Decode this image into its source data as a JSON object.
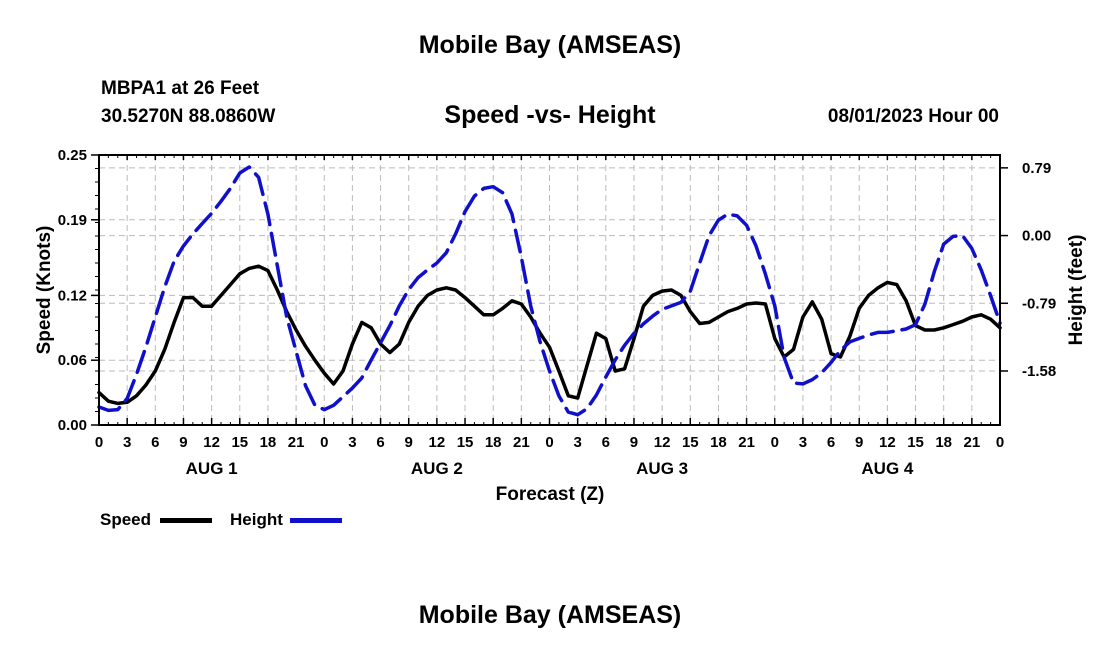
{
  "page": {
    "title_top": "Mobile Bay (AMSEAS)",
    "title_bottom": "Mobile Bay (AMSEAS)",
    "station": "MBPA1 at 26 Feet",
    "coords": "30.5270N  88.0860W",
    "date": "08/01/2023 Hour 00"
  },
  "legend": {
    "speed_label": "Speed",
    "height_label": "Height"
  },
  "chart_data": {
    "type": "line",
    "title": "Speed -vs- Height",
    "xlabel": "Forecast (Z)",
    "ylabel_left": "Speed (Knots)",
    "ylabel_right": "Height (feet)",
    "x_tick_labels": [
      "0",
      "3",
      "6",
      "9",
      "12",
      "15",
      "18",
      "21",
      "0",
      "3",
      "6",
      "9",
      "12",
      "15",
      "18",
      "21",
      "0",
      "3",
      "6",
      "9",
      "12",
      "15",
      "18",
      "21",
      "0",
      "3",
      "6",
      "9",
      "12",
      "15",
      "18",
      "21",
      "0"
    ],
    "day_labels": [
      "AUG 1",
      "AUG 2",
      "AUG 3",
      "AUG 4"
    ],
    "y_left_ticks": [
      "0.00",
      "0.06",
      "0.12",
      "0.19",
      "0.25"
    ],
    "y_left_range": [
      0,
      0.25
    ],
    "y_right_ticks": [
      "0.79",
      "0.00",
      "-0.79",
      "-1.58"
    ],
    "y_right_range": [
      -2.21,
      0.94
    ],
    "x_range_hours": [
      0,
      96
    ],
    "grid": true,
    "colors": {
      "speed": "#000000",
      "height": "#1010cc",
      "grid": "#bbbbbb"
    },
    "series": [
      {
        "name": "Speed",
        "axis": "left",
        "x": [
          0,
          1,
          2,
          3,
          4,
          5,
          6,
          7,
          8,
          9,
          10,
          11,
          12,
          13,
          14,
          15,
          16,
          17,
          18,
          19,
          20,
          21,
          22,
          23,
          24,
          25,
          26,
          27,
          28,
          29,
          30,
          31,
          32,
          33,
          34,
          35,
          36,
          37,
          38,
          39,
          40,
          41,
          42,
          43,
          44,
          45,
          46,
          47,
          48,
          49,
          50,
          51,
          52,
          53,
          54,
          55,
          56,
          57,
          58,
          59,
          60,
          61,
          62,
          63,
          64,
          65,
          66,
          67,
          68,
          69,
          70,
          71,
          72,
          73,
          74,
          75,
          76,
          77,
          78,
          79,
          80,
          81,
          82,
          83,
          84,
          85,
          86,
          87,
          88,
          89,
          90,
          91,
          92,
          93,
          94,
          95,
          96
        ],
        "values": [
          0.03,
          0.022,
          0.02,
          0.021,
          0.027,
          0.037,
          0.05,
          0.07,
          0.095,
          0.118,
          0.118,
          0.11,
          0.11,
          0.12,
          0.13,
          0.14,
          0.145,
          0.147,
          0.143,
          0.125,
          0.105,
          0.088,
          0.073,
          0.06,
          0.048,
          0.038,
          0.05,
          0.075,
          0.095,
          0.09,
          0.075,
          0.067,
          0.075,
          0.095,
          0.11,
          0.12,
          0.125,
          0.127,
          0.125,
          0.118,
          0.11,
          0.102,
          0.102,
          0.108,
          0.115,
          0.112,
          0.1,
          0.085,
          0.072,
          0.05,
          0.027,
          0.025,
          0.055,
          0.085,
          0.08,
          0.05,
          0.052,
          0.08,
          0.11,
          0.12,
          0.124,
          0.125,
          0.12,
          0.105,
          0.094,
          0.095,
          0.1,
          0.105,
          0.108,
          0.112,
          0.113,
          0.112,
          0.08,
          0.063,
          0.07,
          0.1,
          0.114,
          0.098,
          0.066,
          0.063,
          0.082,
          0.108,
          0.12,
          0.127,
          0.132,
          0.13,
          0.115,
          0.092,
          0.088,
          0.088,
          0.09,
          0.093,
          0.096,
          0.1,
          0.102,
          0.098,
          0.09
        ]
      },
      {
        "name": "Height",
        "axis": "right",
        "x": [
          0,
          1,
          2,
          3,
          4,
          5,
          6,
          7,
          8,
          9,
          10,
          11,
          12,
          13,
          14,
          15,
          16,
          17,
          18,
          19,
          20,
          21,
          22,
          23,
          24,
          25,
          26,
          27,
          28,
          29,
          30,
          31,
          32,
          33,
          34,
          35,
          36,
          37,
          38,
          39,
          40,
          41,
          42,
          43,
          44,
          45,
          46,
          47,
          48,
          49,
          50,
          51,
          52,
          53,
          54,
          55,
          56,
          57,
          58,
          59,
          60,
          61,
          62,
          63,
          64,
          65,
          66,
          67,
          68,
          69,
          70,
          71,
          72,
          73,
          74,
          75,
          76,
          77,
          78,
          79,
          80,
          81,
          82,
          83,
          84,
          85,
          86,
          87,
          88,
          89,
          90,
          91,
          92,
          93,
          94,
          95,
          96
        ],
        "values": [
          -2.0,
          -2.04,
          -2.03,
          -1.9,
          -1.62,
          -1.3,
          -0.95,
          -0.6,
          -0.3,
          -0.12,
          0.02,
          0.14,
          0.26,
          0.4,
          0.55,
          0.73,
          0.8,
          0.68,
          0.25,
          -0.35,
          -0.95,
          -1.35,
          -1.75,
          -1.98,
          -2.03,
          -1.98,
          -1.88,
          -1.78,
          -1.66,
          -1.45,
          -1.25,
          -1.05,
          -0.82,
          -0.63,
          -0.49,
          -0.4,
          -0.32,
          -0.2,
          0.02,
          0.28,
          0.46,
          0.55,
          0.57,
          0.5,
          0.25,
          -0.25,
          -0.82,
          -1.24,
          -1.58,
          -1.87,
          -2.06,
          -2.09,
          -2.02,
          -1.86,
          -1.65,
          -1.45,
          -1.28,
          -1.14,
          -1.03,
          -0.94,
          -0.86,
          -0.82,
          -0.78,
          -0.65,
          -0.32,
          0.0,
          0.18,
          0.25,
          0.23,
          0.12,
          -0.12,
          -0.45,
          -0.82,
          -1.42,
          -1.72,
          -1.73,
          -1.68,
          -1.6,
          -1.48,
          -1.34,
          -1.24,
          -1.2,
          -1.16,
          -1.13,
          -1.13,
          -1.11,
          -1.09,
          -1.04,
          -0.8,
          -0.42,
          -0.1,
          -0.01,
          0.0,
          -0.15,
          -0.4,
          -0.7,
          -1.02
        ]
      }
    ]
  }
}
